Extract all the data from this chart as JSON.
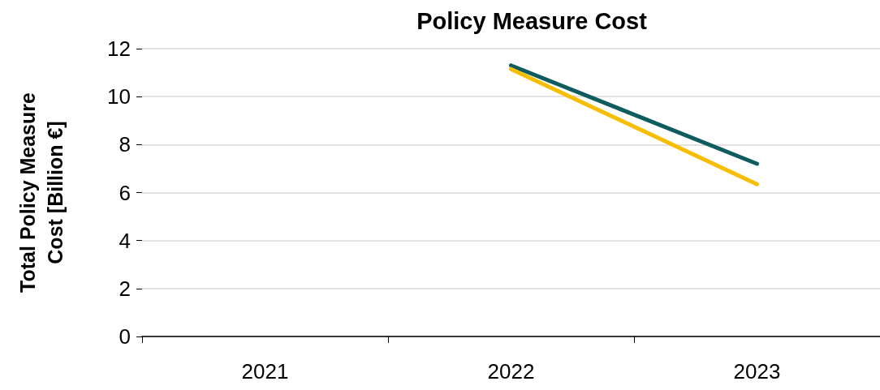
{
  "chart_data": {
    "type": "line",
    "title": "Policy Measure Cost",
    "ylabel": "Total Policy Measure\nCost [Billion €]",
    "categories": [
      "2021",
      "2022",
      "2023"
    ],
    "series": [
      {
        "color": "#0e5c60",
        "values": [
          null,
          11.3,
          7.2
        ]
      },
      {
        "color": "#f7bd00",
        "values": [
          null,
          11.15,
          6.35
        ]
      }
    ],
    "ylim": [
      0,
      12
    ],
    "yticks": [
      0,
      2,
      4,
      6,
      8,
      10,
      12
    ],
    "grid": "y",
    "marker": "none",
    "line_style": "solid"
  }
}
